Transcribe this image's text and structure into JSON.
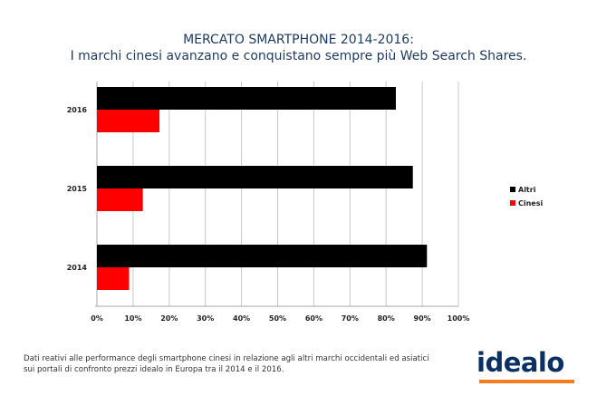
{
  "chart_data": {
    "type": "bar",
    "orientation": "horizontal",
    "title": "MERCATO SMARTPHONE 2014-2016:",
    "subtitle": "I marchi cinesi avanzano e conquistano sempre più Web Search Shares.",
    "categories": [
      "2016",
      "2015",
      "2014"
    ],
    "series": [
      {
        "name": "Altri",
        "color": "#000000",
        "values": [
          82.7,
          87.4,
          91.3
        ]
      },
      {
        "name": "Cinesi",
        "color": "#ff0000",
        "values": [
          17.3,
          12.7,
          8.9
        ]
      }
    ],
    "xlim": [
      0,
      100
    ],
    "xticks": [
      "0%",
      "10%",
      "20%",
      "30%",
      "40%",
      "50%",
      "60%",
      "70%",
      "80%",
      "90%",
      "100%"
    ],
    "grid": "vertical",
    "legend": "right"
  },
  "footer": {
    "line1": "Dati reativi alle performance degli smartphone cinesi in relazione agli altri marchi occidentali ed asiatici",
    "line2": "sui portali di confronto prezzi idealo in Europa tra il 2014 e il 2016."
  },
  "logo": {
    "text": "idealo",
    "color": "#0a3161",
    "accent": "#f47b20"
  }
}
